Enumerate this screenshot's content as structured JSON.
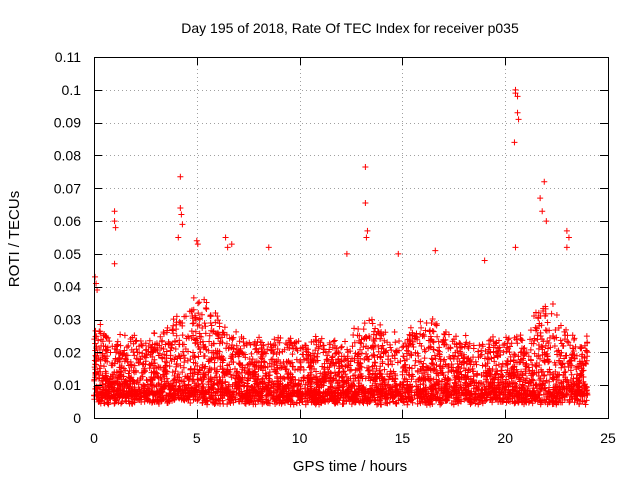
{
  "chart_data": {
    "type": "scatter",
    "title": "Day 195 of 2018, Rate Of TEC Index for receiver p035",
    "xlabel": "GPS time / hours",
    "ylabel": "ROTI / TECUs",
    "xlim": [
      0,
      25
    ],
    "ylim": [
      0,
      0.11
    ],
    "xticks": [
      0,
      5,
      10,
      15,
      20,
      25
    ],
    "xtick_labels": [
      "0",
      "5",
      "10",
      "15",
      "20",
      "25"
    ],
    "yticks": [
      0,
      0.01,
      0.02,
      0.03,
      0.04,
      0.05,
      0.06,
      0.07,
      0.08,
      0.09,
      0.1,
      0.11
    ],
    "ytick_labels": [
      "0",
      "0.01",
      "0.02",
      "0.03",
      "0.04",
      "0.05",
      "0.06",
      "0.07",
      "0.08",
      "0.09",
      "0.1",
      "0.11"
    ],
    "grid": true,
    "marker": "+",
    "color": "#ff0000",
    "series": [
      {
        "name": "ROTI",
        "note": "dense band of points 0.003-0.04 across 0-24 h; notable outliers listed",
        "outliers": [
          [
            0.05,
            0.043
          ],
          [
            0.1,
            0.041
          ],
          [
            0.15,
            0.039
          ],
          [
            1.0,
            0.063
          ],
          [
            1.0,
            0.06
          ],
          [
            1.05,
            0.058
          ],
          [
            1.0,
            0.047
          ],
          [
            4.2,
            0.0735
          ],
          [
            4.2,
            0.064
          ],
          [
            4.25,
            0.062
          ],
          [
            4.3,
            0.059
          ],
          [
            4.1,
            0.055
          ],
          [
            5.0,
            0.054
          ],
          [
            5.05,
            0.053
          ],
          [
            6.4,
            0.055
          ],
          [
            6.5,
            0.052
          ],
          [
            6.7,
            0.053
          ],
          [
            8.5,
            0.052
          ],
          [
            13.2,
            0.0765
          ],
          [
            13.2,
            0.0655
          ],
          [
            13.3,
            0.057
          ],
          [
            13.25,
            0.055
          ],
          [
            12.3,
            0.05
          ],
          [
            14.8,
            0.05
          ],
          [
            16.6,
            0.051
          ],
          [
            19.0,
            0.048
          ],
          [
            20.5,
            0.1
          ],
          [
            20.5,
            0.099
          ],
          [
            20.6,
            0.098
          ],
          [
            20.6,
            0.093
          ],
          [
            20.65,
            0.091
          ],
          [
            20.45,
            0.084
          ],
          [
            20.5,
            0.052
          ],
          [
            21.9,
            0.072
          ],
          [
            21.7,
            0.067
          ],
          [
            21.8,
            0.063
          ],
          [
            22.0,
            0.06
          ],
          [
            23.0,
            0.057
          ],
          [
            23.1,
            0.055
          ],
          [
            23.0,
            0.052
          ]
        ]
      }
    ]
  }
}
